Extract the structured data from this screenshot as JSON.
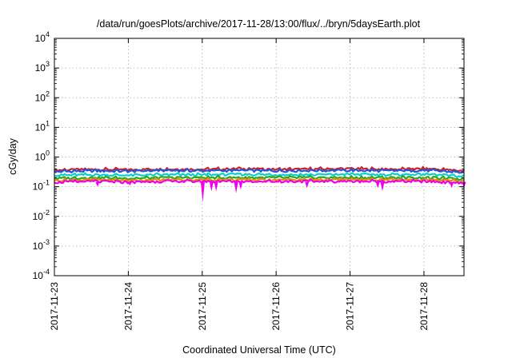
{
  "chart_data": {
    "type": "line",
    "title": "/data/run/goesPlots/archive/2017-11-28/13:00/flux/../bryn/5daysEarth.plot",
    "xlabel": "Coordinated Universal Time (UTC)",
    "ylabel": "cGy/day",
    "yscale": "log",
    "ylim": [
      0.0001,
      10000
    ],
    "xlim": [
      "2017-11-23",
      "2017-11-28T13:00"
    ],
    "grid": true,
    "legend": "none",
    "x_ticks": [
      "2017-11-23",
      "2017-11-24",
      "2017-11-25",
      "2017-11-26",
      "2017-11-27",
      "2017-11-28"
    ],
    "y_ticks": [
      {
        "base": "10",
        "exp": "-4",
        "value": 0.0001
      },
      {
        "base": "10",
        "exp": "-3",
        "value": 0.001
      },
      {
        "base": "10",
        "exp": "-2",
        "value": 0.01
      },
      {
        "base": "10",
        "exp": "-1",
        "value": 0.1
      },
      {
        "base": "10",
        "exp": "0",
        "value": 1
      },
      {
        "base": "10",
        "exp": "1",
        "value": 10
      },
      {
        "base": "10",
        "exp": "2",
        "value": 100
      },
      {
        "base": "10",
        "exp": "3",
        "value": 1000
      },
      {
        "base": "10",
        "exp": "4",
        "value": 10000
      }
    ],
    "x": [
      "2017-11-23",
      "2017-11-23T12:00",
      "2017-11-24",
      "2017-11-24T12:00",
      "2017-11-25",
      "2017-11-25T12:00",
      "2017-11-26",
      "2017-11-26T12:00",
      "2017-11-27",
      "2017-11-27T12:00",
      "2017-11-28",
      "2017-11-28T13:00"
    ],
    "series": [
      {
        "color": "#cc2222",
        "values": [
          0.36,
          0.38,
          0.37,
          0.39,
          0.38,
          0.4,
          0.38,
          0.39,
          0.4,
          0.38,
          0.4,
          0.34
        ]
      },
      {
        "color": "#2255dd",
        "values": [
          0.32,
          0.34,
          0.33,
          0.35,
          0.34,
          0.35,
          0.34,
          0.35,
          0.35,
          0.34,
          0.35,
          0.3
        ]
      },
      {
        "color": "#11cccc",
        "values": [
          0.24,
          0.25,
          0.24,
          0.25,
          0.25,
          0.26,
          0.25,
          0.25,
          0.26,
          0.25,
          0.26,
          0.22
        ]
      },
      {
        "color": "#22aa22",
        "values": [
          0.19,
          0.2,
          0.19,
          0.2,
          0.2,
          0.2,
          0.2,
          0.2,
          0.2,
          0.2,
          0.2,
          0.18
        ]
      },
      {
        "color": "#ee8800",
        "values": [
          0.16,
          0.17,
          0.16,
          0.17,
          0.17,
          0.17,
          0.17,
          0.17,
          0.17,
          0.17,
          0.17,
          0.15
        ]
      },
      {
        "color": "#ee00ee",
        "values": [
          0.14,
          0.15,
          0.14,
          0.15,
          0.15,
          0.15,
          0.15,
          0.15,
          0.15,
          0.15,
          0.15,
          0.13
        ]
      }
    ],
    "dips_magenta": [
      {
        "x": "2017-11-23T14:00",
        "y": 0.1
      },
      {
        "x": "2017-11-24T00:30",
        "y": 0.11
      },
      {
        "x": "2017-11-25T00:10",
        "y": 0.03
      },
      {
        "x": "2017-11-25T03:00",
        "y": 0.07
      },
      {
        "x": "2017-11-25T04:30",
        "y": 0.07
      },
      {
        "x": "2017-11-25T11:00",
        "y": 0.06
      },
      {
        "x": "2017-11-25T12:30",
        "y": 0.08
      },
      {
        "x": "2017-11-26T10:00",
        "y": 0.09
      },
      {
        "x": "2017-11-27T09:00",
        "y": 0.09
      },
      {
        "x": "2017-11-27T10:30",
        "y": 0.07
      },
      {
        "x": "2017-11-28T09:00",
        "y": 0.09
      },
      {
        "x": "2017-11-28T13:00",
        "y": 0.09
      }
    ]
  }
}
